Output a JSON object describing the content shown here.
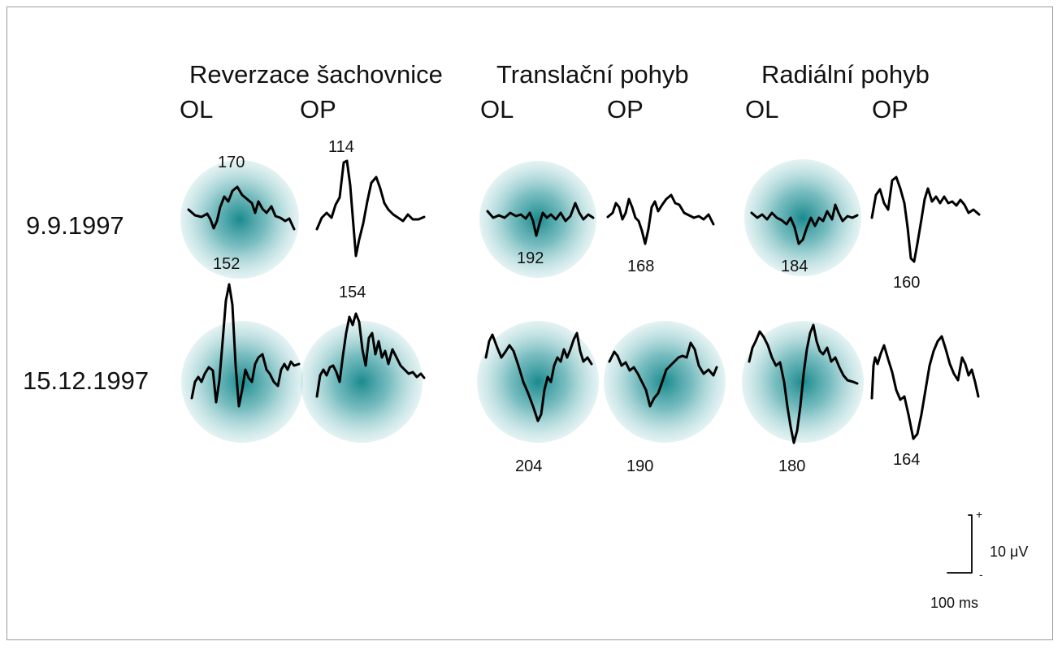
{
  "conditions": [
    {
      "key": "checker",
      "title": "Reverzace šachovnice"
    },
    {
      "key": "trans",
      "title": "Translační pohyb"
    },
    {
      "key": "radial",
      "title": "Radiální pohyb"
    }
  ],
  "eyes": [
    "OL",
    "OP"
  ],
  "dates": [
    "9.9.1997",
    "15.12.1997"
  ],
  "latencies": {
    "row1": {
      "checker_ol": "170",
      "checker_op": "114",
      "trans_ol": "192",
      "trans_op": "168",
      "radial_ol": "184",
      "radial_op": "160"
    },
    "row2": {
      "checker_ol": "152",
      "checker_op": "154",
      "trans_ol": "204",
      "trans_op": "190",
      "radial_ol": "180",
      "radial_op": "164"
    }
  },
  "highlight_color": "#1a8a8e",
  "scale_bar": {
    "amplitude": "10 μV",
    "time": "100 ms",
    "plus": "+",
    "minus": "-"
  }
}
